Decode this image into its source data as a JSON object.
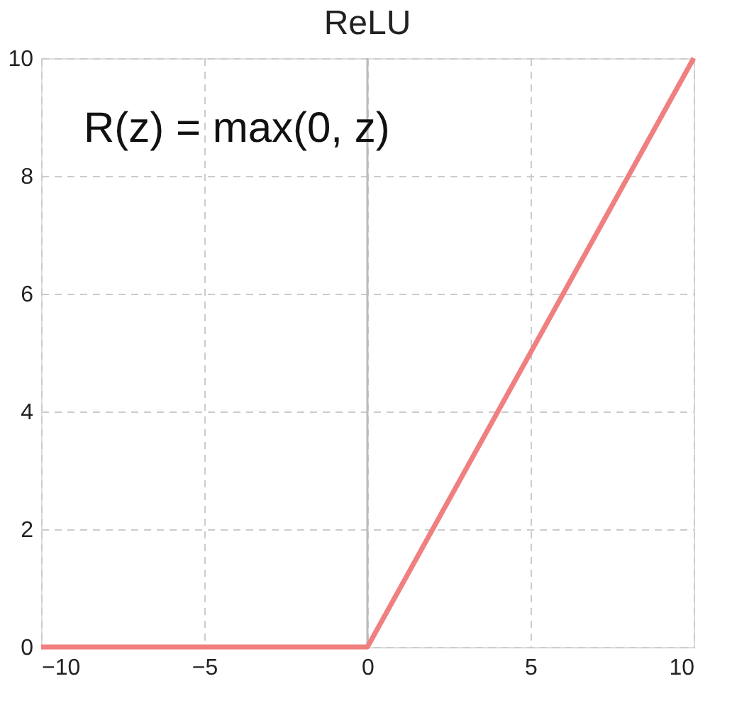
{
  "chart_data": {
    "type": "line",
    "title": "ReLU",
    "x": [
      -10,
      0,
      10
    ],
    "series": [
      {
        "color": "#f08080",
        "values": [
          0,
          0,
          10
        ]
      }
    ],
    "xlim": [
      -10,
      10
    ],
    "xticks": [
      -10,
      -5,
      0,
      5,
      10
    ],
    "ylim": [
      0,
      10
    ],
    "yticks": [
      0,
      2,
      4,
      6,
      8,
      10
    ],
    "grid": true,
    "marker": "none",
    "line_style": "solid",
    "ref_lines": [
      {
        "axis": "x",
        "value": 0,
        "color": "#bbbbbb",
        "line_style": "solid"
      }
    ],
    "annotations": [
      "R(z) = max(0, z)"
    ]
  }
}
